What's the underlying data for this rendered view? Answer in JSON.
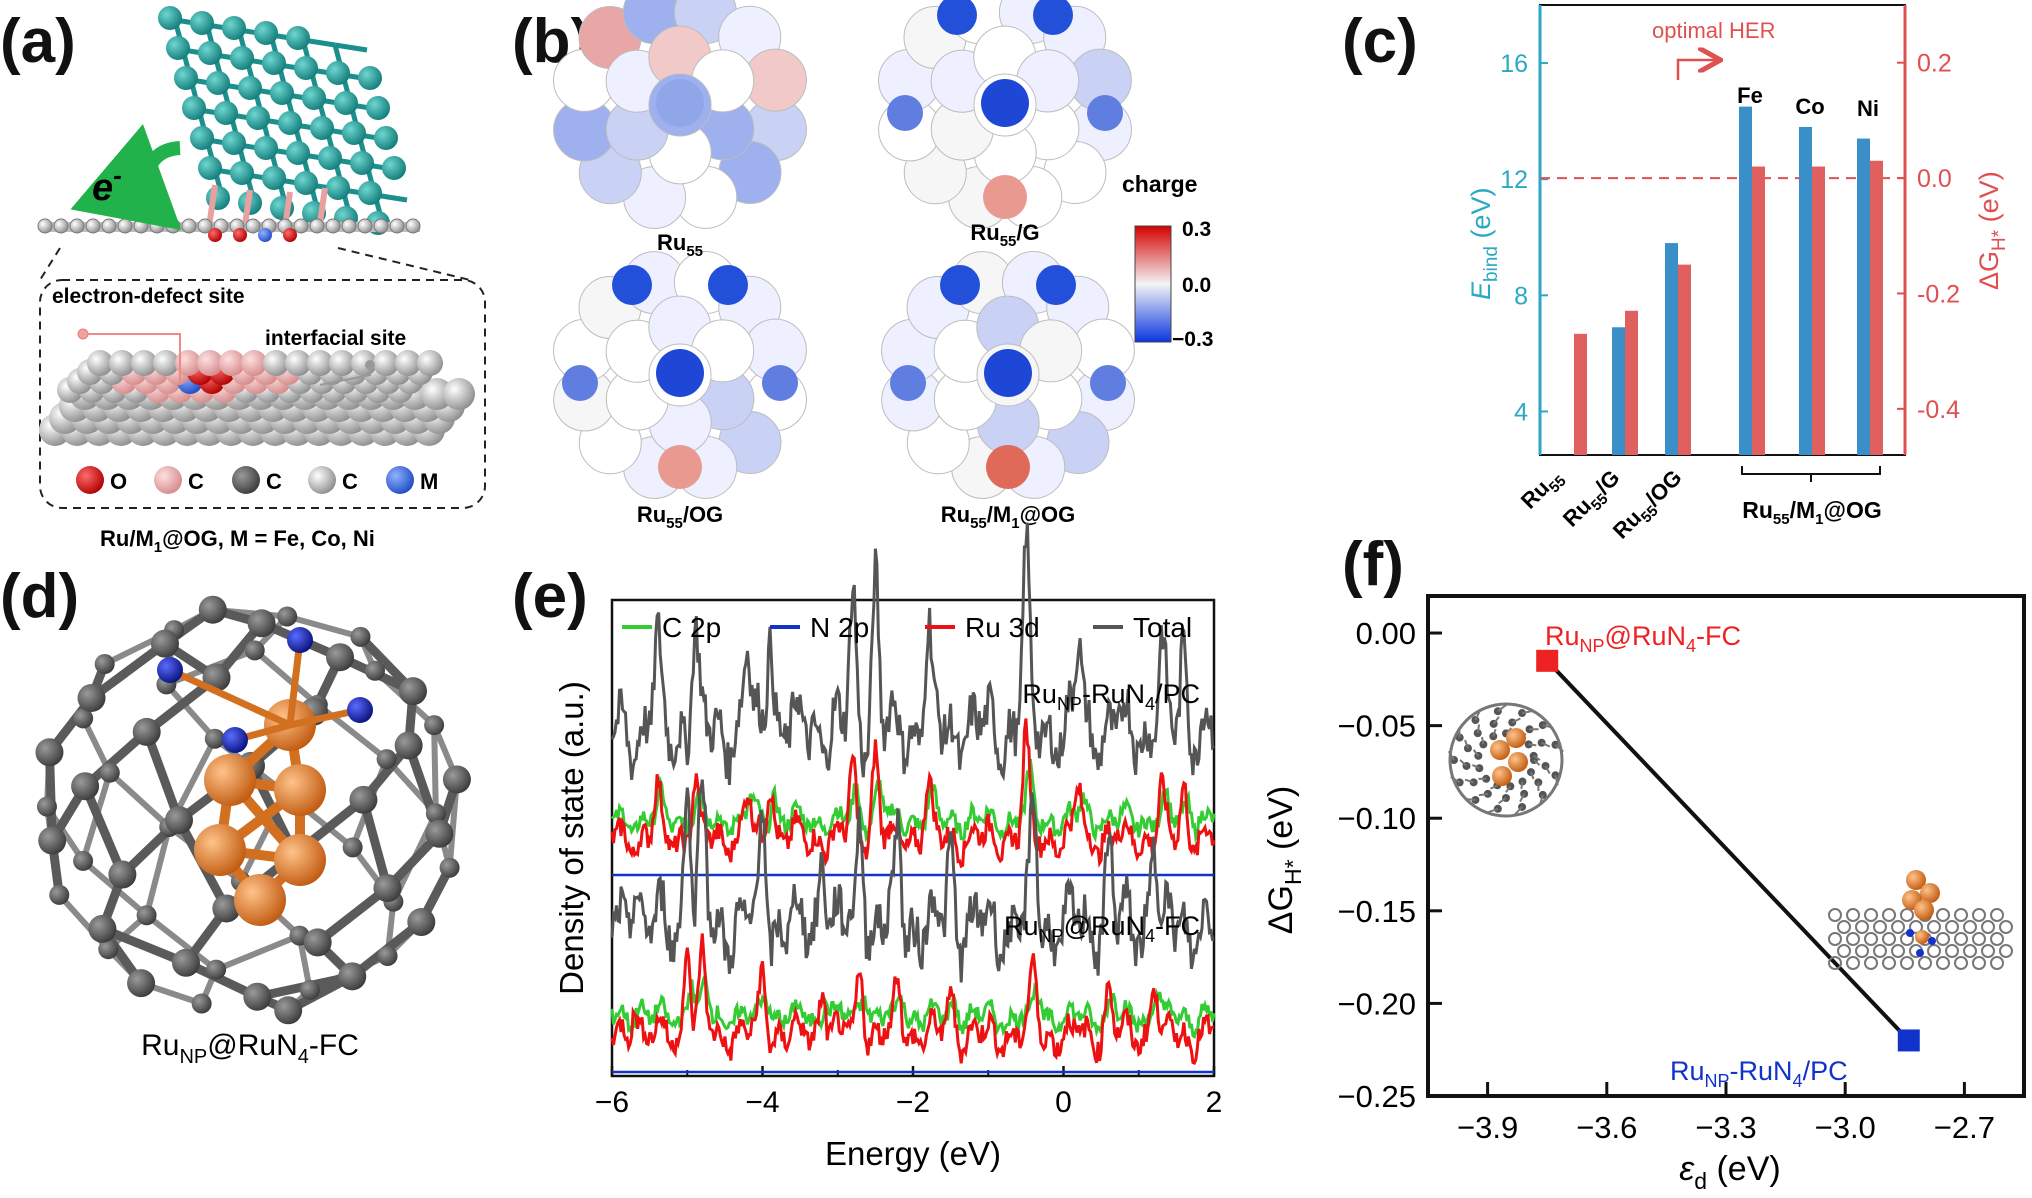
{
  "panels": {
    "a": {
      "label": "(a)",
      "electron": "e",
      "electron_sup": "-",
      "defect_label": "electron-defect site",
      "interfacial_label": "interfacial site",
      "legend": [
        "O",
        "C",
        "C",
        "C",
        "M"
      ],
      "caption_pre": "Ru/M",
      "caption_sub": "1",
      "caption_post": "@OG, M = Fe, Co, Ni"
    },
    "b": {
      "label": "(b)",
      "colorbar_title": "charge",
      "colorbar_ticks": [
        "0.3",
        "0.0",
        "−0.3"
      ],
      "clusters": [
        {
          "pre": "Ru",
          "sub": "55",
          "post": ""
        },
        {
          "pre": "Ru",
          "sub": "55",
          "post": "/G"
        },
        {
          "pre": "Ru",
          "sub": "55",
          "post": "/OG"
        },
        {
          "pre": "Ru",
          "sub": "55",
          "post": "/M",
          "sub2": "1",
          "post2": "@OG"
        }
      ]
    },
    "c": {
      "label": "(c)",
      "optimal": "optimal HER",
      "metals": [
        "Fe",
        "Co",
        "Ni"
      ],
      "y1_label": "E",
      "y1_sub": "bind",
      "y1_unit": " (eV)",
      "y2_label": "ΔG",
      "y2_sub": "H*",
      "y2_unit": " (eV)",
      "group_label_pre": "Ru",
      "group_label_sub": "55",
      "group_label_post": "/M",
      "group_label_sub2": "1",
      "group_label_post2": "@OG"
    },
    "d": {
      "label": "(d)",
      "caption_pre": "Ru",
      "caption_sub": "NP",
      "caption_mid": "@RuN",
      "caption_sub2": "4",
      "caption_post": "-FC"
    },
    "e": {
      "label": "(e)"
    },
    "f": {
      "label": "(f)"
    }
  },
  "chart_data": [
    {
      "id": "c",
      "type": "bar",
      "categories": [
        "Ru55",
        "Ru55/G",
        "Ru55/OG",
        "Fe",
        "Co",
        "Ni"
      ],
      "series": [
        {
          "name": "E_bind",
          "axis": "left",
          "color": "#3a8fc9",
          "values": [
            null,
            6.9,
            9.8,
            14.5,
            13.8,
            13.4
          ]
        },
        {
          "name": "ΔG_H*",
          "axis": "right",
          "color": "#e06060",
          "values": [
            -0.27,
            -0.23,
            -0.15,
            0.02,
            0.02,
            0.03
          ]
        }
      ],
      "y1": {
        "ticks": [
          "4",
          "8",
          "12",
          "16"
        ],
        "lim": [
          2.5,
          18.0
        ]
      },
      "y2": {
        "ticks": [
          "-0.4",
          "-0.2",
          "0.0",
          "0.2"
        ],
        "lim": [
          -0.48,
          0.3
        ]
      },
      "reference_line": 0.0
    },
    {
      "id": "e",
      "type": "line",
      "title": "",
      "xlabel": "Energy (eV)",
      "ylabel": "Density of state (a.u.)",
      "xlim": [
        -6,
        2
      ],
      "xticks": [
        "-6",
        "-4",
        "-2",
        "0",
        "2"
      ],
      "legend": [
        {
          "name": "C 2p",
          "color": "#33cc33"
        },
        {
          "name": "N 2p",
          "color": "#1133cc"
        },
        {
          "name": "Ru 3d",
          "color": "#ee1111"
        },
        {
          "name": "Total",
          "color": "#555555"
        }
      ],
      "systems": [
        {
          "pre": "Ru",
          "sub": "NP",
          "mid": "-RuN",
          "sub2": "4",
          "post": "/PC",
          "offset": 1.0
        },
        {
          "pre": "Ru",
          "sub": "NP",
          "mid": "@RuN",
          "sub2": "4",
          "post": "-FC",
          "offset": 0.0
        }
      ]
    },
    {
      "id": "f",
      "type": "scatter",
      "xlabel": "ε",
      "xlabel_sub": "d",
      "xlabel_unit": " (eV)",
      "ylabel": "ΔG",
      "ylabel_sub": "H*",
      "ylabel_unit": " (eV)",
      "xlim": [
        -4.05,
        -2.55
      ],
      "ylim": [
        -0.25,
        0.02
      ],
      "xticks": [
        "-3.9",
        "-3.6",
        "-3.3",
        "-3.0",
        "-2.7"
      ],
      "yticks": [
        "0.00",
        "-0.05",
        "-0.10",
        "-0.15",
        "-0.20",
        "-0.25"
      ],
      "points": [
        {
          "x": -3.75,
          "y": -0.015,
          "color": "#ee2222",
          "pre": "Ru",
          "sub": "NP",
          "mid": "@RuN",
          "sub2": "4",
          "post": "-FC"
        },
        {
          "x": -2.84,
          "y": -0.22,
          "color": "#1133cc",
          "pre": "Ru",
          "sub": "NP",
          "mid": "-RuN",
          "sub2": "4",
          "post": "/PC"
        }
      ]
    }
  ]
}
